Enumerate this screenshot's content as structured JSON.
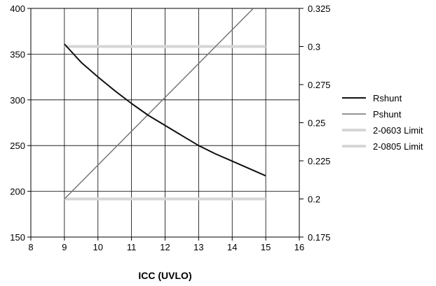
{
  "chart_data": {
    "type": "line",
    "title": "",
    "xlabel": "ICC (UVLO)",
    "ylabel": "",
    "y2label": "",
    "grid": true,
    "legend_position": "right",
    "xlim": [
      8,
      16
    ],
    "ylim": [
      150,
      400
    ],
    "y2lim": [
      0.175,
      0.325
    ],
    "x_ticks": [
      "8",
      "9",
      "10",
      "11",
      "12",
      "13",
      "14",
      "15",
      "16"
    ],
    "y_ticks": [
      "150",
      "200",
      "250",
      "300",
      "350",
      "400"
    ],
    "y2_ticks": [
      "0.175",
      "0.2",
      "0.225",
      "0.25",
      "0.275",
      "0.3",
      "0.325"
    ],
    "series": [
      {
        "name": "Rshunt",
        "axis": "left",
        "color": "#111111",
        "x": [
          9,
          9.5,
          10,
          10.5,
          11,
          11.5,
          12,
          12.5,
          13,
          13.5,
          14,
          14.5,
          15
        ],
        "y": [
          361,
          341,
          325,
          310,
          296,
          283,
          272,
          261,
          250,
          241,
          233,
          225,
          217
        ]
      },
      {
        "name": "Pshunt",
        "axis": "right",
        "color": "#707070",
        "x": [
          9,
          14.63
        ],
        "y": [
          0.2,
          0.325
        ]
      },
      {
        "name": "2-0603 Limit",
        "axis": "right",
        "color": "#d6d6d6",
        "x": [
          9,
          15
        ],
        "y": [
          0.2,
          0.2
        ]
      },
      {
        "name": "2-0805 Limit",
        "axis": "right",
        "color": "#d6d6d6",
        "x": [
          9,
          15
        ],
        "y": [
          0.3,
          0.3
        ]
      }
    ]
  }
}
